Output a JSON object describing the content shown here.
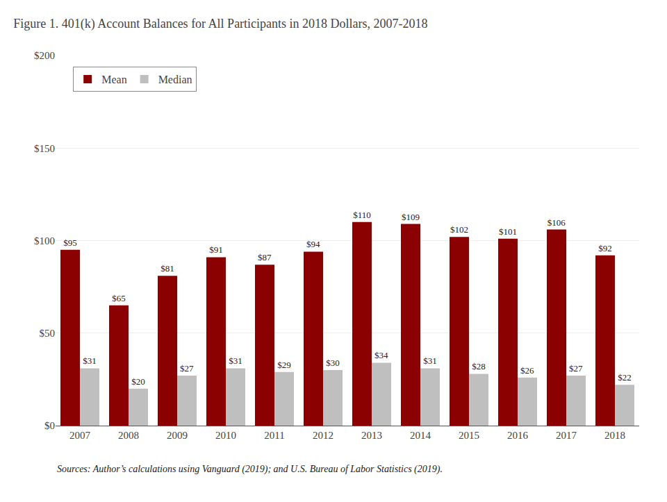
{
  "chart_data": {
    "type": "bar",
    "title": "Figure 1. 401(k) Account Balances for All Participants in 2018 Dollars, 2007-2018",
    "annotations": [
      "Sources: Author’s calculations using Vanguard (2019); and U.S. Bureau of Labor Statistics (2019)."
    ],
    "categories": [
      "2007",
      "2008",
      "2009",
      "2010",
      "2011",
      "2012",
      "2013",
      "2014",
      "2015",
      "2016",
      "2017",
      "2018"
    ],
    "series": [
      {
        "name": "Mean",
        "color": "#8B0000",
        "values": [
          95,
          65,
          81,
          91,
          87,
          94,
          110,
          109,
          102,
          101,
          106,
          92
        ],
        "value_labels": [
          "$95",
          "$65",
          "$81",
          "$91",
          "$87",
          "$94",
          "$110",
          "$109",
          "$102",
          "$101",
          "$106",
          "$92"
        ]
      },
      {
        "name": "Median",
        "color": "#BFBFBF",
        "values": [
          31,
          20,
          27,
          31,
          29,
          30,
          34,
          31,
          28,
          26,
          27,
          22
        ],
        "value_labels": [
          "$31",
          "$20",
          "$27",
          "$31",
          "$29",
          "$30",
          "$34",
          "$31",
          "$28",
          "$26",
          "$27",
          "$22"
        ]
      }
    ],
    "ylim": [
      0,
      200
    ],
    "yticks": [
      {
        "value": 0,
        "label": "$0"
      },
      {
        "value": 50,
        "label": "$50"
      },
      {
        "value": 100,
        "label": "$100"
      },
      {
        "value": 150,
        "label": "$150"
      },
      {
        "value": 200,
        "label": "$200"
      }
    ],
    "grid": true,
    "legend": "upper left",
    "data_labels": true
  }
}
